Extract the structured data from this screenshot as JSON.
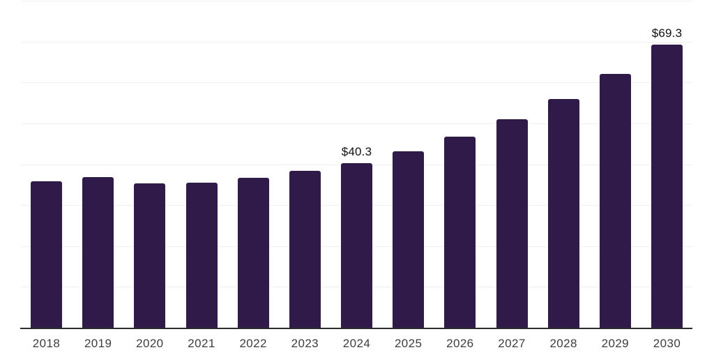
{
  "chart_data": {
    "type": "bar",
    "title": "",
    "xlabel": "",
    "ylabel": "",
    "categories": [
      "2018",
      "2019",
      "2020",
      "2021",
      "2022",
      "2023",
      "2024",
      "2025",
      "2026",
      "2027",
      "2028",
      "2029",
      "2030"
    ],
    "values": [
      35.9,
      36.9,
      35.3,
      35.5,
      36.7,
      38.4,
      40.3,
      43.1,
      46.7,
      51.0,
      56.0,
      62.1,
      69.3
    ],
    "value_prefix": "$",
    "data_labels": [
      {
        "category": "2024",
        "label": "$40.3"
      },
      {
        "category": "2030",
        "label": "$69.3"
      }
    ],
    "ylim": [
      0,
      80
    ],
    "gridline_interval": 10,
    "grid": true,
    "legend": "none",
    "y_axis_labels_visible": false
  },
  "colors": {
    "bar": "#2f1a4a",
    "axis": "#2b2b2b",
    "gridline": "#f0f0f0",
    "tick_label": "#3d3d3d",
    "data_label": "#111111",
    "background": "#ffffff"
  }
}
